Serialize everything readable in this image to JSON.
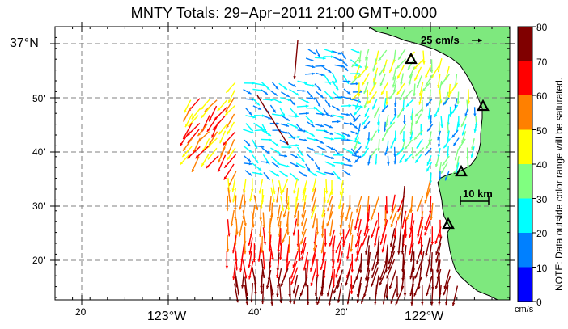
{
  "title": "MNTY Totals: 29−Apr−2011 21:00 GMT+0.000",
  "scale_label": "25 cm/s",
  "distance_label": "10 km",
  "lat_labels": [
    "37°N",
    "50'",
    "40'",
    "30'",
    "20'"
  ],
  "lon_labels": [
    "20'",
    "123°W",
    "40'",
    "20'",
    "122°W"
  ],
  "colorbar": {
    "ticks": [
      "80",
      "70",
      "60",
      "50",
      "40",
      "30",
      "20",
      "10",
      "0"
    ],
    "unit": "cm/s",
    "note": "NOTE: Data outside color range will be saturated.",
    "colors": [
      "#0000ff",
      "#0080ff",
      "#00ffff",
      "#80ff80",
      "#ffff00",
      "#ff8000",
      "#ff0000",
      "#800000"
    ]
  },
  "colors": {
    "land": "#7ee87e",
    "coast": "#000000",
    "grid": "#808080"
  }
}
